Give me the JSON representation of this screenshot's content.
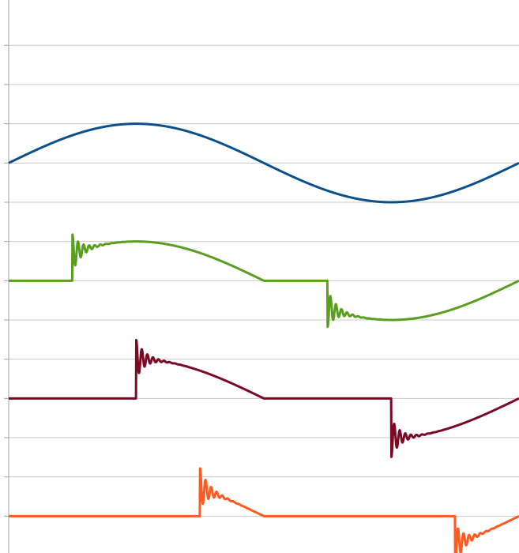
{
  "chart_data": {
    "type": "line",
    "title": "",
    "xlabel": "",
    "ylabel": "",
    "grid": true,
    "x_range": [
      0,
      360
    ],
    "y_range": [
      -6.5,
      7
    ],
    "y_gridlines": [
      -6.5,
      -6,
      -5,
      -4,
      -3,
      -2,
      -1,
      0,
      1,
      2,
      3,
      4,
      5,
      6,
      7
    ],
    "series": [
      {
        "color": "#0b4f8c",
        "offset": 5,
        "amplitude": 1,
        "phase_control_start": 0,
        "ringing": false,
        "description_values": "full sine wave"
      },
      {
        "color": "#5a9e1f",
        "offset": 2,
        "amplitude": 1,
        "phase_control_start": 45,
        "ringing": true
      },
      {
        "color": "#7a0a23",
        "offset": -1,
        "amplitude": 1,
        "phase_control_start": 90,
        "ringing": true
      },
      {
        "color": "#ff5a1f",
        "offset": -4,
        "amplitude": 1,
        "phase_control_start": 135,
        "ringing": true
      }
    ]
  }
}
